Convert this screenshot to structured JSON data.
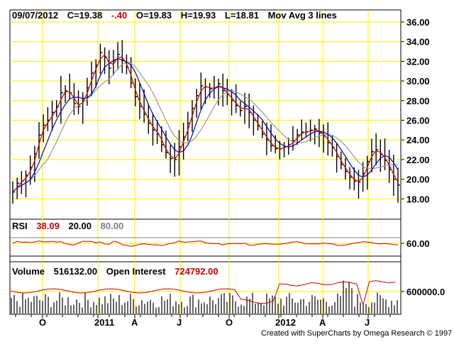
{
  "header": {
    "date": "09/07/2012",
    "close": "C=19.38",
    "change": "-.40",
    "open": "O=19.83",
    "high": "H=19.93",
    "low": "L=18.81",
    "study": "Mov Avg 3 lines"
  },
  "rsi_header": {
    "name": "RSI",
    "value": "38.09",
    "lower": "20.00",
    "upper": "80.00"
  },
  "volume_header": {
    "name": "Volume",
    "value": "516132.00",
    "oi_label": "Open Interest",
    "oi_value": "724792.00"
  },
  "credit": "Created with SuperCharts by Omega Research © 1997",
  "colors": {
    "grid": "#f5f200",
    "bars": "#000000",
    "ma_fast": "#cc0000",
    "ma_mid": "#0000cc",
    "ma_slow": "#999999",
    "change_neg": "#cc0000",
    "rsi_upper": "#808080"
  },
  "chart_data": [
    {
      "type": "ohlc",
      "panel": "price",
      "y_ticks": [
        "18.00",
        "20.00",
        "22.00",
        "24.00",
        "26.00",
        "28.00",
        "30.00",
        "32.00",
        "34.00",
        "36.00"
      ],
      "ylim": [
        16.5,
        36.5
      ],
      "x_labels": [
        "O",
        "2011",
        "A",
        "J",
        "O",
        "2012",
        "A",
        "J"
      ],
      "closes": [
        18.7,
        19.6,
        19.8,
        20.4,
        21.2,
        22.6,
        24.5,
        25.5,
        26.0,
        26.8,
        27.4,
        28.8,
        29.0,
        28.8,
        27.7,
        27.4,
        28.2,
        29.3,
        30.8,
        31.6,
        32.9,
        32.4,
        31.3,
        32.1,
        32.7,
        32.1,
        31.4,
        29.8,
        28.4,
        27.4,
        26.6,
        25.7,
        25.0,
        24.6,
        23.5,
        22.7,
        22.1,
        22.0,
        23.3,
        24.3,
        25.7,
        27.2,
        28.5,
        29.5,
        29.4,
        29.2,
        29.3,
        29.7,
        29.0,
        28.6,
        28.0,
        27.5,
        27.0,
        27.4,
        26.8,
        26.0,
        25.4,
        24.6,
        24.0,
        23.4,
        23.1,
        23.1,
        23.3,
        23.5,
        23.9,
        24.5,
        24.8,
        24.8,
        25.0,
        25.1,
        24.7,
        24.4,
        23.7,
        23.2,
        22.3,
        21.5,
        20.8,
        20.2,
        19.8,
        19.7,
        20.6,
        21.8,
        22.8,
        23.0,
        22.5,
        21.9,
        21.0,
        20.0,
        19.4
      ],
      "ma_fast_last": 19.8,
      "ma_mid_last": 20.9,
      "ma_slow_last": 21.5
    },
    {
      "type": "line",
      "panel": "rsi",
      "y_ticks": [
        "60.00"
      ],
      "ylim": [
        45,
        75
      ],
      "levels": [
        20,
        80
      ],
      "last": 38.09
    },
    {
      "type": "bar+line",
      "panel": "volume",
      "y_ticks": [
        "600000.0"
      ],
      "series": [
        "Volume",
        "Open Interest"
      ],
      "volume_last": 516132,
      "open_interest_last": 724792
    }
  ]
}
